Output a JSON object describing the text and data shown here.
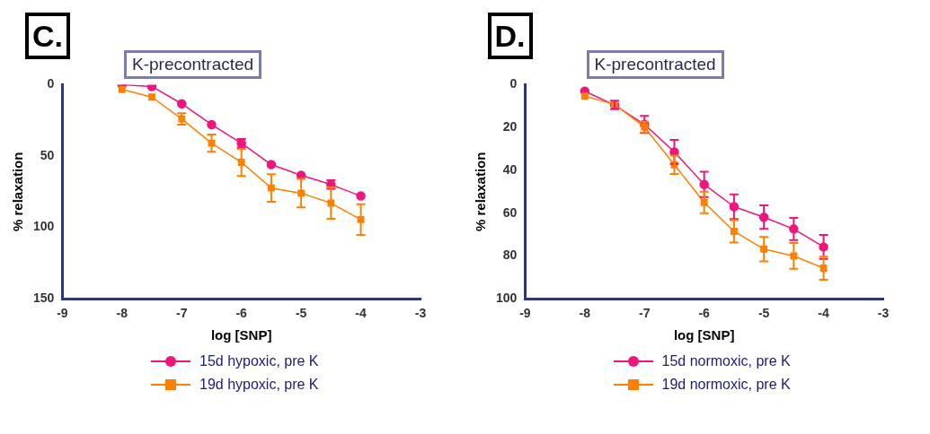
{
  "chart_data": [
    {
      "type": "line",
      "title": "K-precontracted",
      "annotations": [
        "C."
      ],
      "xlabel": "log [SNP]",
      "ylabel": "% relaxation",
      "x": [
        -8,
        -7.5,
        -7,
        -6.5,
        -6,
        -5.5,
        -5,
        -4.5,
        -4
      ],
      "xlim": [
        -9,
        -3
      ],
      "xticks": [
        -9,
        -8,
        -7,
        -6,
        -5,
        -4,
        -3
      ],
      "ylim": [
        150,
        0
      ],
      "yticks": [
        0,
        50,
        100,
        150
      ],
      "grid": false,
      "legend": "bottom",
      "series": [
        {
          "name": "15d hypoxic, pre K",
          "color": "#f0157d",
          "marker": "circle",
          "values": [
            0,
            1.3,
            13.4,
            28,
            41,
            56,
            63.5,
            70,
            78
          ],
          "errors": [
            null,
            null,
            null,
            null,
            3,
            null,
            null,
            3,
            null
          ]
        },
        {
          "name": "19d hypoxic, pre K",
          "color": "#ff8000",
          "marker": "square",
          "values": [
            3.4,
            8.7,
            24,
            41,
            54.4,
            72.4,
            76,
            83,
            94.5
          ],
          "errors": [
            null,
            null,
            4,
            6,
            9.5,
            9.7,
            10,
            11,
            10.7
          ]
        }
      ]
    },
    {
      "type": "line",
      "title": "K-precontracted",
      "annotations": [
        "D."
      ],
      "xlabel": "log [SNP]",
      "ylabel": "% relaxation",
      "x": [
        -8,
        -7.5,
        -7,
        -6.5,
        -6,
        -5.5,
        -5,
        -4.5,
        -4
      ],
      "xlim": [
        -9,
        -3
      ],
      "xticks": [
        -9,
        -8,
        -7,
        -6,
        -5,
        -4,
        -3
      ],
      "ylim": [
        100,
        0
      ],
      "yticks": [
        0,
        20,
        40,
        60,
        80,
        100
      ],
      "grid": false,
      "legend": "bottom",
      "series": [
        {
          "name": "15d normoxic, pre K",
          "color": "#f0157d",
          "marker": "circle",
          "values": [
            3.1,
            9.5,
            18.6,
            31.4,
            46.6,
            57,
            61.9,
            67.4,
            75.8
          ],
          "errors": [
            null,
            2,
            4,
            5.6,
            5.9,
            5.8,
            5.5,
            5.2,
            5.6
          ]
        },
        {
          "name": "19d normoxic, pre K",
          "color": "#ff8000",
          "marker": "square",
          "values": [
            5.4,
            9.2,
            19.8,
            37.4,
            55,
            68.5,
            76.8,
            80,
            85.7
          ],
          "errors": [
            null,
            null,
            2.5,
            4.3,
            5,
            5.2,
            5.7,
            6,
            5.4
          ]
        }
      ]
    }
  ]
}
